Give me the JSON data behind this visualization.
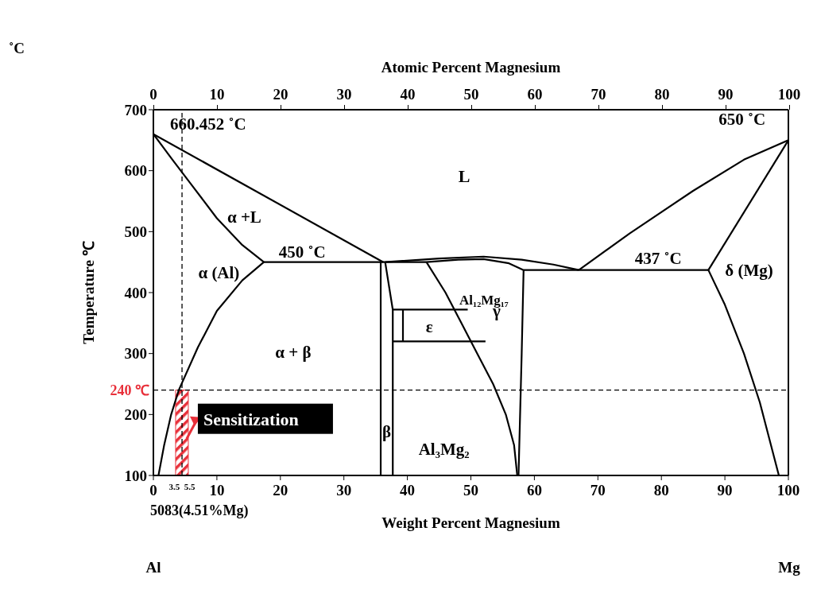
{
  "chart_data": {
    "type": "line",
    "xlabel": "Weight Percent Magnesium",
    "x2label": "Atomic Percent Magnesium",
    "ylabel": "Temperature ℃",
    "xlim": [
      0,
      100
    ],
    "xticks": [
      0,
      10,
      20,
      30,
      40,
      50,
      60,
      70,
      80,
      90,
      100
    ],
    "x2lim": [
      0,
      100
    ],
    "x2ticks": [
      0,
      10,
      20,
      30,
      40,
      50,
      60,
      70,
      80,
      90,
      100
    ],
    "ylim": [
      100,
      700
    ],
    "yticks": [
      100,
      200,
      300,
      400,
      500,
      600,
      700
    ],
    "grid": false,
    "marker": "none",
    "line_style": "solid",
    "series": [
      {
        "color": "#000000",
        "x": [
          0,
          36.2
        ],
        "values": [
          660,
          450
        ]
      },
      {
        "color": "#000000",
        "x": [
          0,
          3,
          6,
          10,
          14,
          17.4
        ],
        "values": [
          660,
          618,
          577,
          522,
          478,
          450
        ]
      },
      {
        "color": "#000000",
        "x": [
          17.4,
          14,
          10,
          7,
          4,
          2.8,
          1.7,
          0.8
        ],
        "values": [
          450,
          420,
          370,
          310,
          240,
          200,
          150,
          100
        ]
      },
      {
        "color": "#000000",
        "x": [
          17.4,
          36.2,
          43,
          48,
          52,
          56,
          58.3,
          87.4
        ],
        "values": [
          450,
          450,
          450,
          454,
          455,
          448,
          437,
          437
        ]
      },
      {
        "color": "#000000",
        "x": [
          35.8,
          35.8
        ],
        "values": [
          450,
          100
        ]
      },
      {
        "color": "#000000",
        "x": [
          36.5,
          37.7,
          37.7
        ],
        "values": [
          450,
          372,
          100
        ]
      },
      {
        "color": "#000000",
        "x": [
          39.3,
          39.3
        ],
        "values": [
          372,
          320
        ]
      },
      {
        "color": "#000000",
        "x": [
          37.7,
          49.5
        ],
        "values": [
          372,
          372
        ]
      },
      {
        "color": "#000000",
        "x": [
          37.7,
          52.3
        ],
        "values": [
          320,
          320
        ]
      },
      {
        "color": "#000000",
        "x": [
          36.5,
          45,
          52,
          58,
          63,
          67
        ],
        "values": [
          450,
          456,
          459,
          454,
          446,
          437
        ]
      },
      {
        "color": "#000000",
        "x": [
          43,
          46,
          48.5,
          51,
          53.5,
          55.5,
          56.8,
          57.3
        ],
        "values": [
          450,
          400,
          350,
          300,
          250,
          200,
          150,
          100
        ]
      },
      {
        "color": "#000000",
        "x": [
          58.3,
          58,
          57.5
        ],
        "values": [
          437,
          300,
          100
        ]
      },
      {
        "color": "#000000",
        "x": [
          67,
          75,
          85,
          93,
          100
        ],
        "values": [
          437,
          497,
          567,
          618,
          650
        ]
      },
      {
        "color": "#000000",
        "x": [
          87.4,
          100
        ],
        "values": [
          437,
          650
        ]
      },
      {
        "color": "#000000",
        "x": [
          87.4,
          90,
          93,
          95.5,
          97,
          98.5
        ],
        "values": [
          437,
          380,
          300,
          220,
          160,
          100
        ]
      }
    ],
    "ref_lines": [
      {
        "axis": "y",
        "value": 240,
        "label": "240 ℃",
        "line_style": "dashed",
        "color": "#000000"
      },
      {
        "axis": "x",
        "value": 4.51,
        "label": "5083(4.51%Mg)",
        "line_style": "dashed",
        "color": "#000000"
      }
    ],
    "bands": [
      {
        "axis": "x",
        "from": 3.5,
        "to": 5.5,
        "label": "Sensitization",
        "color": "#e8303a"
      }
    ],
    "annotations": [
      "˚C",
      "660.452 ˚C",
      "650 ˚C",
      "L",
      "α +L",
      "450 ˚C",
      "α (Al)",
      "α + β",
      "Al₁₂Mg₁₇",
      "γ",
      "ε",
      "437 ˚C",
      "δ (Mg)",
      "β",
      "Al₃Mg₂",
      "Al",
      "Mg",
      "3.5",
      "5.5"
    ]
  }
}
